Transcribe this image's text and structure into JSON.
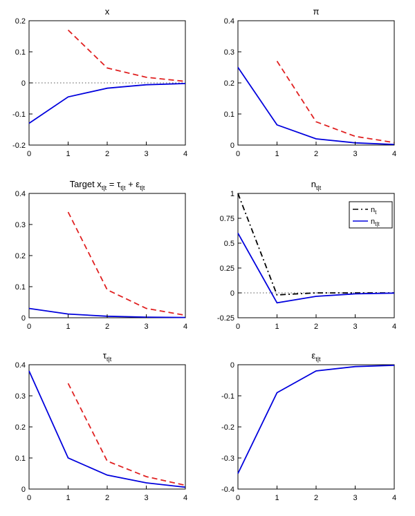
{
  "figure": {
    "background": "#ffffff",
    "axis_color": "#000000",
    "zero_line_color": "#555555",
    "accent_blue": "#0000dd",
    "accent_red": "#e02020"
  },
  "chart_data": [
    {
      "id": "x",
      "type": "line",
      "title": "x",
      "xlim": [
        0,
        4
      ],
      "ylim": [
        -0.2,
        0.2
      ],
      "xticks": [
        {
          "v": 0,
          "label": "0"
        },
        {
          "v": 1,
          "label": "1"
        },
        {
          "v": 2,
          "label": "2"
        },
        {
          "v": 3,
          "label": "3"
        },
        {
          "v": 4,
          "label": "4"
        }
      ],
      "yticks": [
        {
          "v": -0.2,
          "label": "-0.2"
        },
        {
          "v": -0.1,
          "label": "-0.1"
        },
        {
          "v": 0,
          "label": "0"
        },
        {
          "v": 0.1,
          "label": "0.1"
        },
        {
          "v": 0.2,
          "label": "0.2"
        }
      ],
      "zero_line": true,
      "series": [
        {
          "name": "blue-solid-line",
          "color": "#0000dd",
          "style": "solid",
          "x": [
            0,
            1,
            2,
            3,
            4
          ],
          "y": [
            -0.13,
            -0.045,
            -0.017,
            -0.006,
            -0.002
          ]
        },
        {
          "name": "red-dashed-line",
          "color": "#e02020",
          "style": "dashed",
          "x": [
            1,
            2,
            3,
            4
          ],
          "y": [
            0.17,
            0.048,
            0.018,
            0.005
          ]
        }
      ]
    },
    {
      "id": "pi",
      "type": "line",
      "title": "π",
      "xlim": [
        0,
        4
      ],
      "ylim": [
        0,
        0.4
      ],
      "xticks": [
        {
          "v": 0,
          "label": "0"
        },
        {
          "v": 1,
          "label": "1"
        },
        {
          "v": 2,
          "label": "2"
        },
        {
          "v": 3,
          "label": "3"
        },
        {
          "v": 4,
          "label": "4"
        }
      ],
      "yticks": [
        {
          "v": 0,
          "label": "0"
        },
        {
          "v": 0.1,
          "label": "0.1"
        },
        {
          "v": 0.2,
          "label": "0.2"
        },
        {
          "v": 0.3,
          "label": "0.3"
        },
        {
          "v": 0.4,
          "label": "0.4"
        }
      ],
      "zero_line": false,
      "series": [
        {
          "name": "blue-solid-line",
          "color": "#0000dd",
          "style": "solid",
          "x": [
            0,
            1,
            2,
            3,
            4
          ],
          "y": [
            0.25,
            0.065,
            0.02,
            0.007,
            0.002
          ]
        },
        {
          "name": "red-dashed-line",
          "color": "#e02020",
          "style": "dashed",
          "x": [
            1,
            2,
            3,
            4
          ],
          "y": [
            0.27,
            0.075,
            0.028,
            0.008
          ]
        }
      ]
    },
    {
      "id": "target",
      "type": "line",
      "title": "Target x_{t|t} = τ_{t|t} + ε_{t|t}",
      "xlim": [
        0,
        4
      ],
      "ylim": [
        0,
        0.4
      ],
      "xticks": [
        {
          "v": 0,
          "label": "0"
        },
        {
          "v": 1,
          "label": "1"
        },
        {
          "v": 2,
          "label": "2"
        },
        {
          "v": 3,
          "label": "3"
        },
        {
          "v": 4,
          "label": "4"
        }
      ],
      "yticks": [
        {
          "v": 0,
          "label": "0"
        },
        {
          "v": 0.1,
          "label": "0.1"
        },
        {
          "v": 0.2,
          "label": "0.2"
        },
        {
          "v": 0.3,
          "label": "0.3"
        },
        {
          "v": 0.4,
          "label": "0.4"
        }
      ],
      "zero_line": false,
      "series": [
        {
          "name": "blue-solid-line",
          "color": "#0000dd",
          "style": "solid",
          "x": [
            0,
            1,
            2,
            3,
            4
          ],
          "y": [
            0.03,
            0.012,
            0.005,
            0.002,
            0.001
          ]
        },
        {
          "name": "red-dashed-line",
          "color": "#e02020",
          "style": "dashed",
          "x": [
            1,
            2,
            3,
            4
          ],
          "y": [
            0.34,
            0.09,
            0.03,
            0.008
          ]
        }
      ]
    },
    {
      "id": "n",
      "type": "line",
      "title": "n_{t|t}",
      "xlim": [
        0,
        4
      ],
      "ylim": [
        -0.25,
        1
      ],
      "xticks": [
        {
          "v": 0,
          "label": "0"
        },
        {
          "v": 1,
          "label": "1"
        },
        {
          "v": 2,
          "label": "2"
        },
        {
          "v": 3,
          "label": "3"
        },
        {
          "v": 4,
          "label": "4"
        }
      ],
      "yticks": [
        {
          "v": -0.25,
          "label": "-0.25"
        },
        {
          "v": 0,
          "label": "0"
        },
        {
          "v": 0.25,
          "label": "0.25"
        },
        {
          "v": 0.5,
          "label": "0.5"
        },
        {
          "v": 0.75,
          "label": "0.75"
        },
        {
          "v": 1,
          "label": "1"
        }
      ],
      "zero_line": true,
      "series": [
        {
          "name": "nt-dashdot-line",
          "color": "#000000",
          "style": "dashdot",
          "x": [
            0,
            1,
            2,
            3,
            4
          ],
          "y": [
            1,
            -0.02,
            0,
            0,
            0
          ]
        },
        {
          "name": "ntt-solid-line",
          "color": "#0000dd",
          "style": "solid",
          "x": [
            0,
            1,
            2,
            3,
            4
          ],
          "y": [
            0.6,
            -0.1,
            -0.035,
            -0.01,
            -0.002
          ]
        }
      ],
      "legend": {
        "entries": [
          {
            "label": "n_{t}",
            "color": "#000000",
            "style": "dashdot"
          },
          {
            "label": "n_{t|t}",
            "color": "#0000dd",
            "style": "solid"
          }
        ]
      }
    },
    {
      "id": "tau",
      "type": "line",
      "title": "τ_{t|t}",
      "xlim": [
        0,
        4
      ],
      "ylim": [
        0,
        0.4
      ],
      "xticks": [
        {
          "v": 0,
          "label": "0"
        },
        {
          "v": 1,
          "label": "1"
        },
        {
          "v": 2,
          "label": "2"
        },
        {
          "v": 3,
          "label": "3"
        },
        {
          "v": 4,
          "label": "4"
        }
      ],
      "yticks": [
        {
          "v": 0,
          "label": "0"
        },
        {
          "v": 0.1,
          "label": "0.1"
        },
        {
          "v": 0.2,
          "label": "0.2"
        },
        {
          "v": 0.3,
          "label": "0.3"
        },
        {
          "v": 0.4,
          "label": "0.4"
        }
      ],
      "zero_line": false,
      "series": [
        {
          "name": "blue-solid-line",
          "color": "#0000dd",
          "style": "solid",
          "x": [
            0,
            1,
            2,
            3,
            4
          ],
          "y": [
            0.38,
            0.1,
            0.045,
            0.02,
            0.006
          ]
        },
        {
          "name": "red-dashed-line",
          "color": "#e02020",
          "style": "dashed",
          "x": [
            1,
            2,
            3,
            4
          ],
          "y": [
            0.34,
            0.09,
            0.04,
            0.012
          ]
        }
      ]
    },
    {
      "id": "eps",
      "type": "line",
      "title": "ε_{t|t}",
      "xlim": [
        0,
        4
      ],
      "ylim": [
        -0.4,
        0
      ],
      "xticks": [
        {
          "v": 0,
          "label": "0"
        },
        {
          "v": 1,
          "label": "1"
        },
        {
          "v": 2,
          "label": "2"
        },
        {
          "v": 3,
          "label": "3"
        },
        {
          "v": 4,
          "label": "4"
        }
      ],
      "yticks": [
        {
          "v": -0.4,
          "label": "-0.4"
        },
        {
          "v": -0.3,
          "label": "-0.3"
        },
        {
          "v": -0.2,
          "label": "-0.2"
        },
        {
          "v": -0.1,
          "label": "-0.1"
        },
        {
          "v": 0,
          "label": "0"
        }
      ],
      "zero_line": false,
      "series": [
        {
          "name": "blue-solid-line",
          "color": "#0000dd",
          "style": "solid",
          "x": [
            0,
            1,
            2,
            3,
            4
          ],
          "y": [
            -0.35,
            -0.09,
            -0.02,
            -0.006,
            -0.002
          ]
        }
      ]
    }
  ]
}
